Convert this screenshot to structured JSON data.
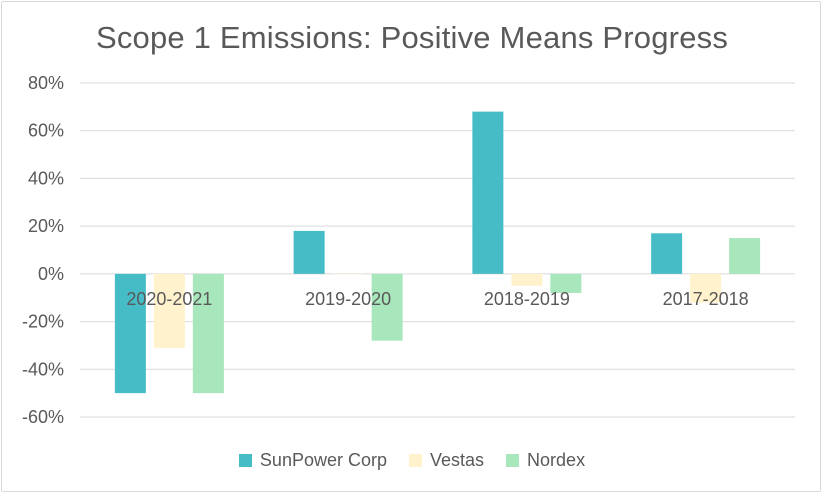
{
  "chart_data": {
    "type": "bar",
    "title": "Scope 1 Emissions: Positive Means Progress",
    "categories": [
      "2020-2021",
      "2019-2020",
      "2018-2019",
      "2017-2018"
    ],
    "series": [
      {
        "name": "SunPower Corp",
        "color": "#46bdc6",
        "values": [
          -50,
          18,
          68,
          17
        ]
      },
      {
        "name": "Vestas",
        "color": "#fff2cc",
        "values": [
          -31,
          0,
          -5,
          -12
        ]
      },
      {
        "name": "Nordex",
        "color": "#a8e6bc",
        "values": [
          -50,
          -28,
          -8,
          15
        ]
      }
    ],
    "ylim": [
      -60,
      80
    ],
    "yticks": [
      80,
      60,
      40,
      20,
      0,
      -20,
      -40,
      -60
    ],
    "ytick_labels": [
      "80%",
      "60%",
      "40%",
      "20%",
      "0%",
      "-20%",
      "-40%",
      "-60%"
    ],
    "grid": true,
    "legend": "bottom"
  }
}
